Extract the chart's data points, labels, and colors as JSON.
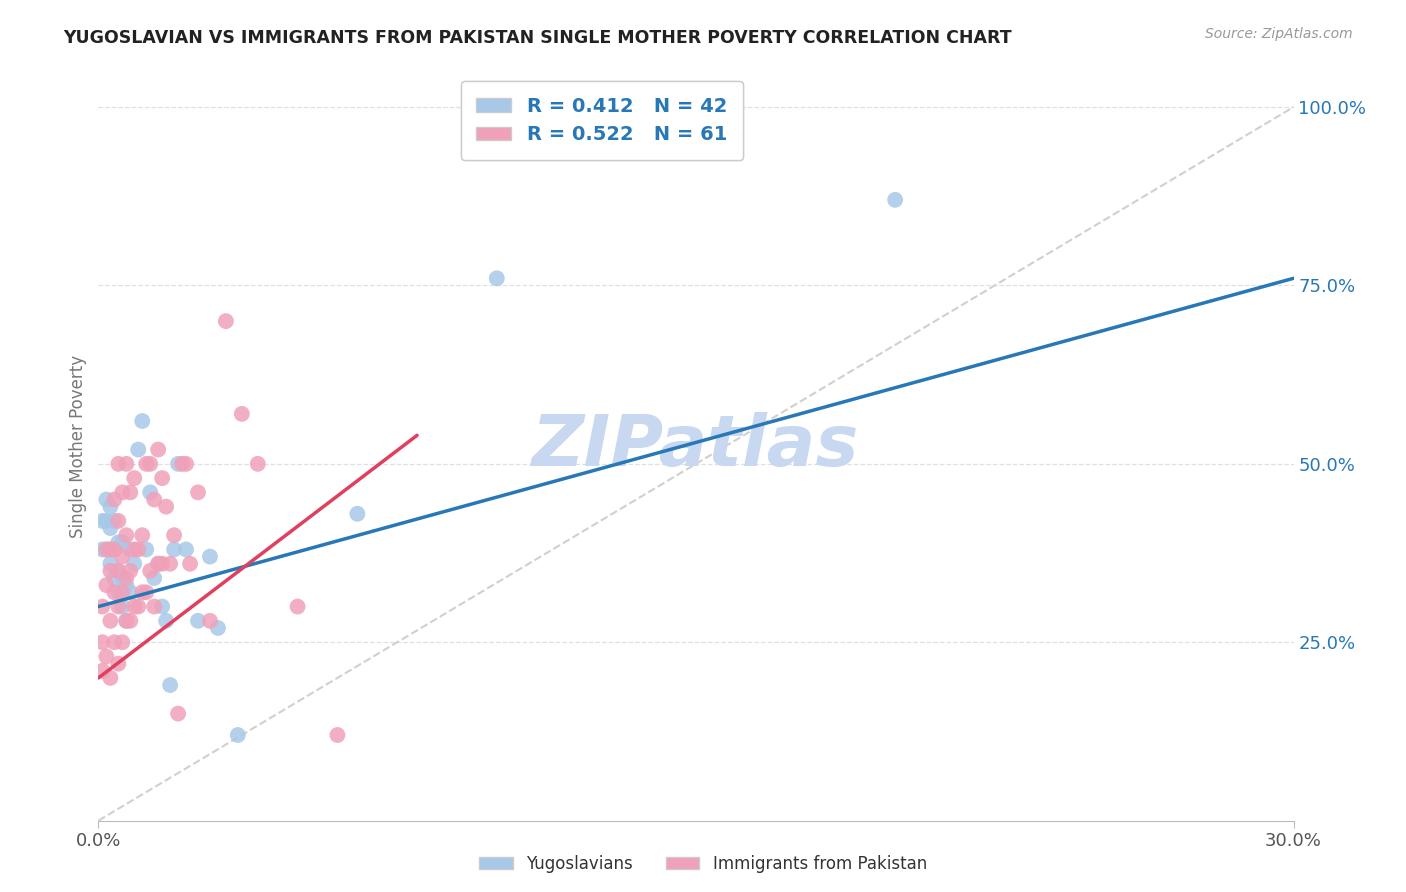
{
  "title": "YUGOSLAVIAN VS IMMIGRANTS FROM PAKISTAN SINGLE MOTHER POVERTY CORRELATION CHART",
  "source": "Source: ZipAtlas.com",
  "ylabel": "Single Mother Poverty",
  "xmin": 0.0,
  "xmax": 0.3,
  "ymin": 0.0,
  "ymax": 1.05,
  "R_blue": 0.412,
  "N_blue": 42,
  "R_pink": 0.522,
  "N_pink": 61,
  "blue_scatter_color": "#a8c8e8",
  "pink_scatter_color": "#f0a0b8",
  "blue_line_color": "#2878b8",
  "pink_line_color": "#e04060",
  "diag_color": "#d0d0d0",
  "grid_color": "#e0e0e0",
  "watermark_text": "ZIPatlas",
  "watermark_color": "#c8d8f0",
  "legend_entries": [
    "Yugoslavians",
    "Immigrants from Pakistan"
  ],
  "blue_line": [
    0.0,
    0.3,
    0.3,
    0.76
  ],
  "pink_line": [
    0.0,
    0.2,
    0.08,
    0.54
  ],
  "blue_x": [
    0.001,
    0.001,
    0.002,
    0.002,
    0.002,
    0.003,
    0.003,
    0.003,
    0.003,
    0.004,
    0.004,
    0.004,
    0.005,
    0.005,
    0.005,
    0.006,
    0.006,
    0.006,
    0.007,
    0.007,
    0.008,
    0.008,
    0.009,
    0.01,
    0.011,
    0.012,
    0.013,
    0.014,
    0.015,
    0.016,
    0.017,
    0.018,
    0.019,
    0.02,
    0.022,
    0.025,
    0.028,
    0.03,
    0.035,
    0.065,
    0.1,
    0.2
  ],
  "blue_y": [
    0.38,
    0.42,
    0.38,
    0.42,
    0.45,
    0.36,
    0.38,
    0.41,
    0.44,
    0.34,
    0.38,
    0.42,
    0.32,
    0.35,
    0.39,
    0.3,
    0.34,
    0.39,
    0.28,
    0.33,
    0.32,
    0.38,
    0.36,
    0.52,
    0.56,
    0.38,
    0.46,
    0.34,
    0.36,
    0.3,
    0.28,
    0.19,
    0.38,
    0.5,
    0.38,
    0.28,
    0.37,
    0.27,
    0.12,
    0.43,
    0.76,
    0.87
  ],
  "pink_x": [
    0.001,
    0.001,
    0.001,
    0.002,
    0.002,
    0.002,
    0.003,
    0.003,
    0.003,
    0.003,
    0.004,
    0.004,
    0.004,
    0.004,
    0.005,
    0.005,
    0.005,
    0.005,
    0.005,
    0.006,
    0.006,
    0.006,
    0.006,
    0.007,
    0.007,
    0.007,
    0.007,
    0.008,
    0.008,
    0.008,
    0.009,
    0.009,
    0.009,
    0.01,
    0.01,
    0.011,
    0.011,
    0.012,
    0.012,
    0.013,
    0.013,
    0.014,
    0.014,
    0.015,
    0.015,
    0.016,
    0.016,
    0.017,
    0.018,
    0.019,
    0.02,
    0.021,
    0.022,
    0.023,
    0.025,
    0.028,
    0.032,
    0.036,
    0.04,
    0.05,
    0.06
  ],
  "pink_y": [
    0.21,
    0.25,
    0.3,
    0.23,
    0.33,
    0.38,
    0.2,
    0.28,
    0.35,
    0.38,
    0.25,
    0.32,
    0.38,
    0.45,
    0.22,
    0.3,
    0.35,
    0.42,
    0.5,
    0.25,
    0.32,
    0.37,
    0.46,
    0.28,
    0.34,
    0.4,
    0.5,
    0.28,
    0.35,
    0.46,
    0.3,
    0.38,
    0.48,
    0.3,
    0.38,
    0.32,
    0.4,
    0.32,
    0.5,
    0.35,
    0.5,
    0.3,
    0.45,
    0.36,
    0.52,
    0.36,
    0.48,
    0.44,
    0.36,
    0.4,
    0.15,
    0.5,
    0.5,
    0.36,
    0.46,
    0.28,
    0.7,
    0.57,
    0.5,
    0.3,
    0.12
  ]
}
